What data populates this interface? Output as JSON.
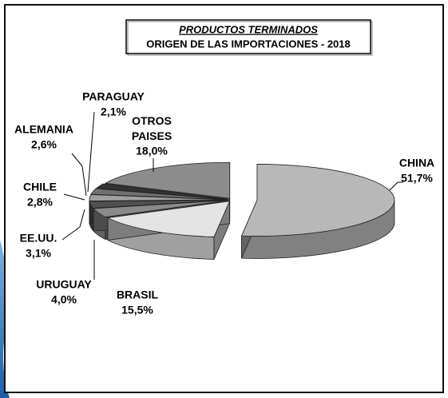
{
  "chart_data": {
    "type": "pie3d",
    "title": "PRODUCTOS TERMINADOS",
    "subtitle": "ORIGEN DE LAS IMPORTACIONES - 2018",
    "categories": [
      "CHINA",
      "BRASIL",
      "URUGUAY",
      "EE.UU.",
      "CHILE",
      "ALEMANIA",
      "PARAGUAY",
      "OTROS PAISES"
    ],
    "values": [
      51.7,
      15.5,
      4.0,
      3.1,
      2.8,
      2.6,
      2.1,
      18.0
    ],
    "value_labels": [
      "51,7%",
      "15,5%",
      "4,0%",
      "3,1%",
      "2,8%",
      "2,6%",
      "2,1%",
      "18,0%"
    ],
    "colors": [
      "#b8b8b8",
      "#e4e4e4",
      "#8a8a8a",
      "#505050",
      "#a0a0a0",
      "#707070",
      "#333333",
      "#8c8c8c"
    ]
  }
}
